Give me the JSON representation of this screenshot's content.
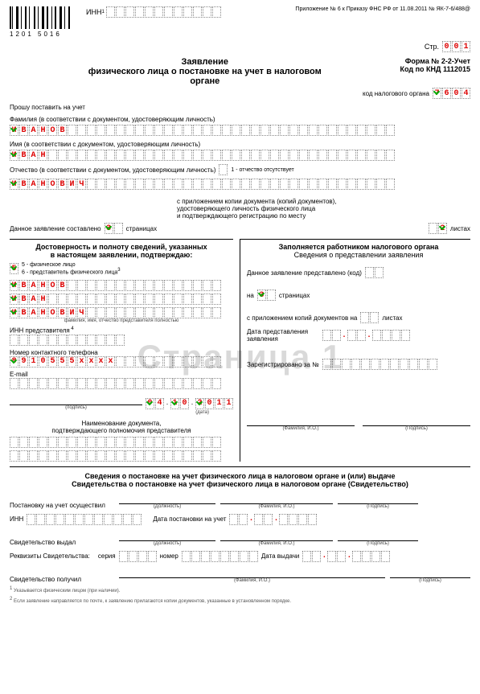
{
  "top": {
    "barcode_num": "1201 5016",
    "inn_label": "ИНН",
    "top_right": "Приложение № 6 к Приказу ФНС РФ от 11.08.2011 № ЯК-7-6/488@",
    "page_label": "Стр.",
    "page_cells": [
      "0",
      "0",
      "1"
    ]
  },
  "header": {
    "title_line1": "Заявление",
    "title_line2": "физического лица о постановке на учет в налоговом",
    "title_line3": "органе",
    "form_no": "Форма № 2-2-Учет",
    "knd": "Код по КНД 1112015",
    "kod_label": "код налогового органа",
    "kod_cells": [
      "7",
      "6",
      "0",
      "4"
    ]
  },
  "request": "Прошу поставить на учет",
  "fam_label": "Фамилия (в соответствии с документом, удостоверяющим личность)",
  "fam": [
    "И",
    "В",
    "А",
    "Н",
    "О",
    "В"
  ],
  "name_label": "Имя (в соответствии с документом, удостоверяющим личность)",
  "name": [
    "И",
    "В",
    "А",
    "Н"
  ],
  "patr_label": "Отчество (в соответствии с документом, удостоверяющим личность)",
  "patr_note": "1 - отчество отсутствует",
  "patr": [
    "И",
    "В",
    "А",
    "Н",
    "О",
    "В",
    "И",
    "Ч"
  ],
  "attach": {
    "prefix": "Данное заявление составлено ",
    "pages": "3",
    "suffix": " страницах",
    "right_l1": "с приложением копии документа (копий документов),",
    "right_l2": "удостоверяющего личность физического лица",
    "right_l3": "и подтверждающего регистрацию по месту",
    "sheets": "2",
    "sheets_suffix": "листах"
  },
  "left": {
    "h1": "Достоверность и полноту сведений, указанных",
    "h2": "в настоящем заявлении, подтверждаю:",
    "opt1": "5 - физическое лицо",
    "opt2": "6 - представитель физического лица",
    "sel": "5",
    "fam": [
      "И",
      "В",
      "А",
      "Н",
      "О",
      "В"
    ],
    "name": [
      "И",
      "В",
      "А",
      "Н"
    ],
    "patr": [
      "И",
      "В",
      "А",
      "Н",
      "О",
      "В",
      "И",
      "Ч"
    ],
    "fio_cap": "фамилия, имя, отчество представителя полностью",
    "inn_rep": "ИНН представителя",
    "phone_label": "Номер контактного телефона",
    "phone": [
      "8",
      "9",
      "1",
      "0",
      "5",
      "5",
      "5",
      "x",
      "x",
      "x",
      "x"
    ],
    "email_label": "E-mail",
    "date": [
      "0",
      "4",
      ".",
      "1",
      "0",
      ".",
      "2",
      "0",
      "1",
      "1"
    ],
    "sig_cap": "(подпись)",
    "date_cap": "(дата)",
    "doc_l1": "Наименование документа,",
    "doc_l2": "подтверждающего полномочия представителя"
  },
  "right": {
    "h1": "Заполняется работником налогового органа",
    "h2": "Сведения о представлении заявления",
    "pres_label": "Данное заявление представлено (код)",
    "on": "на",
    "pages": "3",
    "pages_suffix": "страницах",
    "attach_label": "с приложением копий документов на",
    "sheets_suffix": "листах",
    "date_pres": "Дата представления заявления",
    "reg_label": "Зарегистрировано за №",
    "fio_cap": "(Фамилия, И.О.)",
    "sig_cap": "(Подпись)"
  },
  "bottom": {
    "h1": "Сведения о постановке на учет физического лица в налоговом органе и (или) выдаче",
    "h2": "Свидетельства о постановке на учет физического лица в налоговом органе (Свидетельство)",
    "post_label": "Постановку на учет осуществил",
    "dolzh": "(Должность)",
    "fio": "(Фамилия, И.О.)",
    "sig": "(Подпись)",
    "inn_label": "ИНН",
    "date_post": "Дата постановки на учет",
    "svid_issued": "Свидетельство выдал",
    "rekv": "Реквизиты Свидетельства:",
    "seria": "серия",
    "nomer": "номер",
    "date_issue": "Дата выдачи",
    "svid_got": "Свидетельство получил"
  },
  "footnotes": {
    "f1": "Указывается физическим лицом (при наличии).",
    "f2": "Если заявление направляется по почте, к заявлению прилагаются копии документов, указанные в установленном порядке."
  },
  "watermark": "Страница 1",
  "colors": {
    "red": "#d00000",
    "green": "#0a0"
  }
}
